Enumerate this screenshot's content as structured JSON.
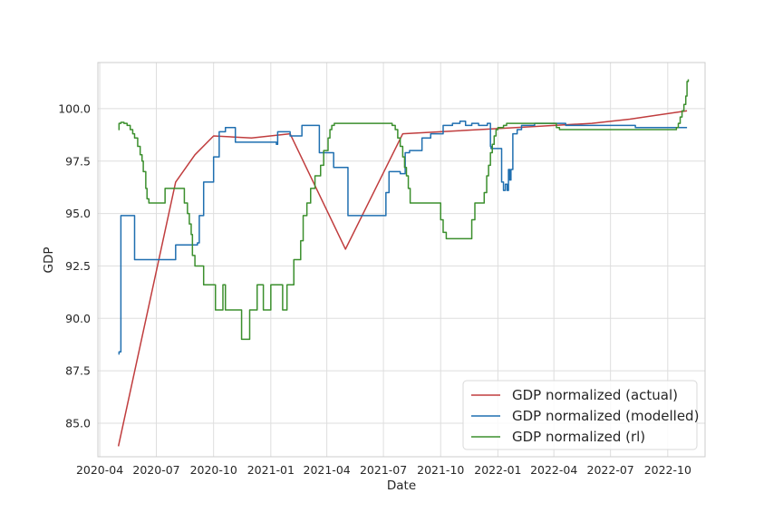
{
  "chart_data": {
    "type": "line",
    "title": "",
    "xlabel": "Date",
    "ylabel": "GDP",
    "grid": true,
    "legend_position": "lower-right",
    "xlim": [
      "2020-03-29",
      "2022-11-30"
    ],
    "ylim": [
      83.4,
      102.2
    ],
    "x_ticks": [
      {
        "date": "2020-04-01",
        "label": "2020-04"
      },
      {
        "date": "2020-07-01",
        "label": "2020-07"
      },
      {
        "date": "2020-10-01",
        "label": "2020-10"
      },
      {
        "date": "2021-01-01",
        "label": "2021-01"
      },
      {
        "date": "2021-04-01",
        "label": "2021-04"
      },
      {
        "date": "2021-07-01",
        "label": "2021-07"
      },
      {
        "date": "2021-10-01",
        "label": "2021-10"
      },
      {
        "date": "2022-01-01",
        "label": "2022-01"
      },
      {
        "date": "2022-04-01",
        "label": "2022-04"
      },
      {
        "date": "2022-07-01",
        "label": "2022-07"
      },
      {
        "date": "2022-10-01",
        "label": "2022-10"
      }
    ],
    "y_ticks": [
      {
        "value": 85.0,
        "label": "85.0"
      },
      {
        "value": 87.5,
        "label": "87.5"
      },
      {
        "value": 90.0,
        "label": "90.0"
      },
      {
        "value": 92.5,
        "label": "92.5"
      },
      {
        "value": 95.0,
        "label": "95.0"
      },
      {
        "value": 97.5,
        "label": "97.5"
      },
      {
        "value": 100.0,
        "label": "100.0"
      }
    ],
    "series": [
      {
        "name": "GDP normalized (actual)",
        "color": "#c03d3e",
        "step": false,
        "x": [
          "2020-05-01",
          "2020-08-01",
          "2020-09-01",
          "2020-10-01",
          "2020-12-01",
          "2021-02-01",
          "2021-05-01",
          "2021-08-01",
          "2022-01-01",
          "2022-06-01",
          "2022-08-01",
          "2022-11-01"
        ],
        "values": [
          83.9,
          96.5,
          97.8,
          98.7,
          98.6,
          98.8,
          93.3,
          98.8,
          99.05,
          99.3,
          99.5,
          99.9
        ]
      },
      {
        "name": "GDP normalized (modelled)",
        "color": "#1f6fb0",
        "step": true,
        "x": [
          "2020-05-01",
          "2020-05-02",
          "2020-05-05",
          "2020-05-27",
          "2020-07-15",
          "2020-08-01",
          "2020-09-03",
          "2020-09-05",
          "2020-09-08",
          "2020-09-15",
          "2020-10-01",
          "2020-10-05",
          "2020-10-10",
          "2020-10-20",
          "2020-11-05",
          "2021-01-10",
          "2021-01-12",
          "2021-01-17",
          "2021-02-01",
          "2021-02-20",
          "2021-03-01",
          "2021-03-20",
          "2021-04-05",
          "2021-04-12",
          "2021-04-20",
          "2021-05-05",
          "2021-06-15",
          "2021-07-03",
          "2021-07-05",
          "2021-07-10",
          "2021-07-20",
          "2021-07-28",
          "2021-08-05",
          "2021-08-12",
          "2021-09-01",
          "2021-09-15",
          "2021-10-05",
          "2021-10-20",
          "2021-11-01",
          "2021-11-10",
          "2021-11-20",
          "2021-12-01",
          "2021-12-15",
          "2021-12-20",
          "2021-12-21",
          "2022-01-05",
          "2022-01-07",
          "2022-01-10",
          "2022-01-13",
          "2022-01-16",
          "2022-01-18",
          "2022-01-20",
          "2022-01-22",
          "2022-01-25",
          "2022-02-01",
          "2022-02-08",
          "2022-02-15",
          "2022-03-01",
          "2022-03-20",
          "2022-04-10",
          "2022-04-20",
          "2022-06-01",
          "2022-07-15",
          "2022-08-10",
          "2022-10-15",
          "2022-11-01"
        ],
        "values": [
          88.3,
          88.4,
          94.9,
          92.8,
          92.8,
          93.5,
          93.5,
          93.6,
          94.9,
          96.5,
          97.7,
          97.7,
          98.9,
          99.1,
          98.4,
          98.3,
          98.9,
          98.9,
          98.7,
          99.2,
          99.2,
          97.9,
          97.9,
          97.2,
          97.2,
          94.9,
          94.9,
          94.9,
          96.0,
          97.0,
          97.0,
          96.9,
          97.9,
          98.0,
          98.6,
          98.8,
          99.2,
          99.3,
          99.4,
          99.2,
          99.3,
          99.2,
          99.3,
          98.2,
          98.1,
          98.1,
          96.5,
          96.1,
          96.4,
          96.1,
          97.1,
          96.6,
          97.1,
          98.8,
          99.0,
          99.2,
          99.2,
          99.3,
          99.3,
          99.3,
          99.2,
          99.2,
          99.2,
          99.1,
          99.1,
          99.1
        ]
      },
      {
        "name": "GDP normalized (rl)",
        "color": "#3b8f2d",
        "step": true,
        "x": [
          "2020-05-01",
          "2020-05-02",
          "2020-05-03",
          "2020-05-05",
          "2020-05-08",
          "2020-05-10",
          "2020-05-15",
          "2020-05-20",
          "2020-05-24",
          "2020-05-27",
          "2020-06-01",
          "2020-06-05",
          "2020-06-08",
          "2020-06-10",
          "2020-06-14",
          "2020-06-16",
          "2020-06-19",
          "2020-06-21",
          "2020-07-01",
          "2020-07-15",
          "2020-08-01",
          "2020-08-15",
          "2020-08-20",
          "2020-08-23",
          "2020-08-26",
          "2020-08-28",
          "2020-09-01",
          "2020-09-15",
          "2020-09-28",
          "2020-10-04",
          "2020-10-14",
          "2020-10-16",
          "2020-10-20",
          "2020-10-22",
          "2020-10-28",
          "2020-11-15",
          "2020-11-25",
          "2020-11-28",
          "2020-11-30",
          "2020-12-10",
          "2020-12-20",
          "2021-01-01",
          "2021-01-10",
          "2021-01-20",
          "2021-01-27",
          "2021-02-07",
          "2021-02-13",
          "2021-02-18",
          "2021-02-22",
          "2021-02-28",
          "2021-03-06",
          "2021-03-13",
          "2021-03-22",
          "2021-03-27",
          "2021-04-03",
          "2021-04-06",
          "2021-04-09",
          "2021-04-13",
          "2021-04-16",
          "2021-04-20",
          "2021-04-25",
          "2021-04-30",
          "2021-06-01",
          "2021-07-15",
          "2021-07-20",
          "2021-07-24",
          "2021-07-28",
          "2021-08-01",
          "2021-08-04",
          "2021-08-07",
          "2021-08-10",
          "2021-08-13",
          "2021-09-01",
          "2021-10-01",
          "2021-10-05",
          "2021-10-10",
          "2021-10-20",
          "2021-11-10",
          "2021-11-20",
          "2021-11-25",
          "2021-12-10",
          "2021-12-14",
          "2021-12-17",
          "2021-12-20",
          "2021-12-23",
          "2021-12-26",
          "2021-12-29",
          "2022-01-01",
          "2022-01-05",
          "2022-01-10",
          "2022-01-15",
          "2022-01-20",
          "2022-02-01",
          "2022-02-10",
          "2022-02-20",
          "2022-03-01",
          "2022-03-20",
          "2022-04-01",
          "2022-04-05",
          "2022-04-10",
          "2022-04-25",
          "2022-05-25",
          "2022-08-01",
          "2022-10-15",
          "2022-10-18",
          "2022-10-21",
          "2022-10-24",
          "2022-10-27",
          "2022-10-30",
          "2022-11-01",
          "2022-11-03"
        ],
        "values": [
          99.0,
          99.3,
          99.3,
          99.35,
          99.35,
          99.3,
          99.2,
          99.0,
          98.8,
          98.6,
          98.2,
          97.8,
          97.5,
          97.0,
          96.2,
          95.7,
          95.5,
          95.5,
          95.5,
          96.2,
          96.2,
          95.5,
          95.0,
          94.5,
          94.0,
          93.0,
          92.5,
          91.6,
          91.6,
          90.4,
          90.4,
          91.6,
          90.4,
          90.4,
          90.4,
          89.0,
          89.0,
          90.4,
          90.4,
          91.6,
          90.4,
          91.6,
          91.6,
          90.4,
          91.6,
          92.8,
          92.8,
          93.7,
          94.9,
          95.5,
          96.2,
          96.8,
          97.3,
          98.0,
          98.6,
          99.0,
          99.2,
          99.3,
          99.3,
          99.3,
          99.3,
          99.3,
          99.3,
          99.2,
          99.0,
          98.6,
          98.2,
          97.7,
          97.2,
          96.8,
          96.2,
          95.5,
          95.5,
          94.7,
          94.1,
          93.8,
          93.8,
          93.8,
          94.7,
          95.5,
          96.0,
          96.8,
          97.3,
          97.9,
          98.3,
          98.7,
          99.0,
          99.1,
          99.1,
          99.2,
          99.3,
          99.3,
          99.3,
          99.3,
          99.3,
          99.3,
          99.3,
          99.3,
          99.1,
          99.0,
          99.0,
          99.0,
          99.0,
          99.1,
          99.3,
          99.6,
          99.9,
          100.2,
          100.6,
          101.3,
          101.4
        ]
      }
    ]
  }
}
